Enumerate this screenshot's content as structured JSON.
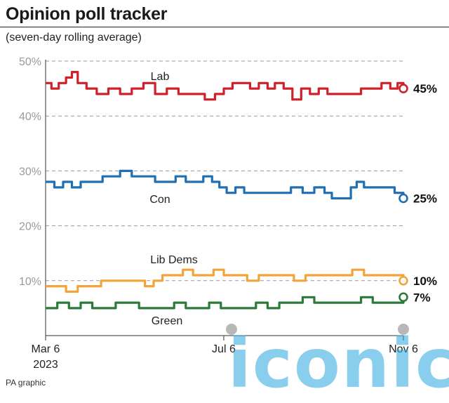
{
  "header": {
    "title": "Opinion poll tracker",
    "subtitle": "(seven-day rolling average)"
  },
  "footer": {
    "credit": "PA graphic"
  },
  "watermark": {
    "text": "iconic"
  },
  "chart_data": {
    "type": "line",
    "title": "Opinion poll tracker",
    "subtitle": "(seven-day rolling average)",
    "x_start": "2023-03-06",
    "x_end": "2023-11-06",
    "x_ticks": [
      {
        "date": "2023-03-06",
        "label": "Mar 6",
        "sublabel": "2023"
      },
      {
        "date": "2023-07-06",
        "label": "Jul 6",
        "sublabel": ""
      },
      {
        "date": "2023-11-06",
        "label": "Nov 6",
        "sublabel": ""
      }
    ],
    "ylim": [
      0,
      50
    ],
    "y_ticks": [
      10,
      20,
      30,
      40,
      50
    ],
    "y_tick_labels": [
      "10%",
      "20%",
      "30%",
      "40%",
      "50%"
    ],
    "grid": "horizontal dashed",
    "series": [
      {
        "name": "Lab",
        "color": "#d0202a",
        "end_label": "45%",
        "points": [
          [
            "2023-03-06",
            46
          ],
          [
            "2023-03-10",
            45
          ],
          [
            "2023-03-15",
            46
          ],
          [
            "2023-03-20",
            47
          ],
          [
            "2023-03-24",
            48
          ],
          [
            "2023-03-28",
            46
          ],
          [
            "2023-04-03",
            45
          ],
          [
            "2023-04-10",
            44
          ],
          [
            "2023-04-18",
            45
          ],
          [
            "2023-04-26",
            44
          ],
          [
            "2023-05-04",
            45
          ],
          [
            "2023-05-12",
            46
          ],
          [
            "2023-05-20",
            44
          ],
          [
            "2023-05-28",
            45
          ],
          [
            "2023-06-05",
            44
          ],
          [
            "2023-06-15",
            44
          ],
          [
            "2023-06-23",
            43
          ],
          [
            "2023-06-30",
            44
          ],
          [
            "2023-07-06",
            45
          ],
          [
            "2023-07-12",
            46
          ],
          [
            "2023-07-18",
            46
          ],
          [
            "2023-07-24",
            45
          ],
          [
            "2023-07-30",
            46
          ],
          [
            "2023-08-05",
            45
          ],
          [
            "2023-08-10",
            46
          ],
          [
            "2023-08-16",
            45
          ],
          [
            "2023-08-22",
            43
          ],
          [
            "2023-08-28",
            45
          ],
          [
            "2023-09-03",
            44
          ],
          [
            "2023-09-09",
            45
          ],
          [
            "2023-09-15",
            44
          ],
          [
            "2023-09-22",
            44
          ],
          [
            "2023-09-30",
            44
          ],
          [
            "2023-10-08",
            45
          ],
          [
            "2023-10-16",
            45
          ],
          [
            "2023-10-22",
            46
          ],
          [
            "2023-10-28",
            45
          ],
          [
            "2023-11-02",
            46
          ],
          [
            "2023-11-06",
            45
          ]
        ]
      },
      {
        "name": "Con",
        "color": "#1f6fb2",
        "end_label": "25%",
        "points": [
          [
            "2023-03-06",
            28
          ],
          [
            "2023-03-12",
            27
          ],
          [
            "2023-03-18",
            28
          ],
          [
            "2023-03-24",
            27
          ],
          [
            "2023-03-30",
            28
          ],
          [
            "2023-04-06",
            28
          ],
          [
            "2023-04-14",
            29
          ],
          [
            "2023-04-20",
            29
          ],
          [
            "2023-04-26",
            30
          ],
          [
            "2023-05-04",
            29
          ],
          [
            "2023-05-12",
            29
          ],
          [
            "2023-05-20",
            28
          ],
          [
            "2023-05-28",
            28
          ],
          [
            "2023-06-03",
            29
          ],
          [
            "2023-06-10",
            28
          ],
          [
            "2023-06-16",
            28
          ],
          [
            "2023-06-22",
            29
          ],
          [
            "2023-06-28",
            28
          ],
          [
            "2023-07-03",
            27
          ],
          [
            "2023-07-08",
            26
          ],
          [
            "2023-07-14",
            27
          ],
          [
            "2023-07-20",
            26
          ],
          [
            "2023-07-28",
            26
          ],
          [
            "2023-08-05",
            26
          ],
          [
            "2023-08-13",
            26
          ],
          [
            "2023-08-21",
            27
          ],
          [
            "2023-08-29",
            26
          ],
          [
            "2023-09-06",
            27
          ],
          [
            "2023-09-13",
            26
          ],
          [
            "2023-09-18",
            25
          ],
          [
            "2023-09-26",
            25
          ],
          [
            "2023-10-01",
            27
          ],
          [
            "2023-10-05",
            28
          ],
          [
            "2023-10-10",
            27
          ],
          [
            "2023-10-16",
            27
          ],
          [
            "2023-10-24",
            27
          ],
          [
            "2023-10-31",
            26
          ],
          [
            "2023-11-06",
            25
          ]
        ]
      },
      {
        "name": "Lib Dems",
        "color": "#f2a33a",
        "end_label": "10%",
        "points": [
          [
            "2023-03-06",
            9
          ],
          [
            "2023-03-14",
            9
          ],
          [
            "2023-03-20",
            8
          ],
          [
            "2023-03-28",
            9
          ],
          [
            "2023-04-05",
            9
          ],
          [
            "2023-04-13",
            10
          ],
          [
            "2023-04-21",
            10
          ],
          [
            "2023-04-29",
            10
          ],
          [
            "2023-05-07",
            10
          ],
          [
            "2023-05-13",
            9
          ],
          [
            "2023-05-19",
            10
          ],
          [
            "2023-05-25",
            11
          ],
          [
            "2023-06-01",
            11
          ],
          [
            "2023-06-08",
            12
          ],
          [
            "2023-06-15",
            11
          ],
          [
            "2023-06-22",
            11
          ],
          [
            "2023-06-29",
            12
          ],
          [
            "2023-07-06",
            11
          ],
          [
            "2023-07-14",
            11
          ],
          [
            "2023-07-22",
            10
          ],
          [
            "2023-07-30",
            11
          ],
          [
            "2023-08-07",
            11
          ],
          [
            "2023-08-15",
            11
          ],
          [
            "2023-08-23",
            10
          ],
          [
            "2023-08-31",
            11
          ],
          [
            "2023-09-08",
            11
          ],
          [
            "2023-09-16",
            11
          ],
          [
            "2023-09-24",
            11
          ],
          [
            "2023-10-02",
            12
          ],
          [
            "2023-10-10",
            11
          ],
          [
            "2023-10-18",
            11
          ],
          [
            "2023-10-26",
            11
          ],
          [
            "2023-11-02",
            11
          ],
          [
            "2023-11-06",
            10
          ]
        ]
      },
      {
        "name": "Green",
        "color": "#2a7b3a",
        "end_label": "7%",
        "points": [
          [
            "2023-03-06",
            5
          ],
          [
            "2023-03-14",
            6
          ],
          [
            "2023-03-22",
            5
          ],
          [
            "2023-03-30",
            6
          ],
          [
            "2023-04-07",
            5
          ],
          [
            "2023-04-15",
            5
          ],
          [
            "2023-04-23",
            6
          ],
          [
            "2023-05-01",
            6
          ],
          [
            "2023-05-09",
            5
          ],
          [
            "2023-05-17",
            5
          ],
          [
            "2023-05-25",
            5
          ],
          [
            "2023-06-02",
            6
          ],
          [
            "2023-06-10",
            5
          ],
          [
            "2023-06-18",
            5
          ],
          [
            "2023-06-26",
            6
          ],
          [
            "2023-07-04",
            5
          ],
          [
            "2023-07-12",
            5
          ],
          [
            "2023-07-20",
            5
          ],
          [
            "2023-07-28",
            6
          ],
          [
            "2023-08-05",
            5
          ],
          [
            "2023-08-13",
            6
          ],
          [
            "2023-08-21",
            6
          ],
          [
            "2023-08-29",
            7
          ],
          [
            "2023-09-06",
            6
          ],
          [
            "2023-09-14",
            6
          ],
          [
            "2023-09-22",
            6
          ],
          [
            "2023-09-30",
            6
          ],
          [
            "2023-10-08",
            7
          ],
          [
            "2023-10-16",
            6
          ],
          [
            "2023-10-24",
            6
          ],
          [
            "2023-11-01",
            6
          ],
          [
            "2023-11-06",
            7
          ]
        ]
      }
    ]
  }
}
